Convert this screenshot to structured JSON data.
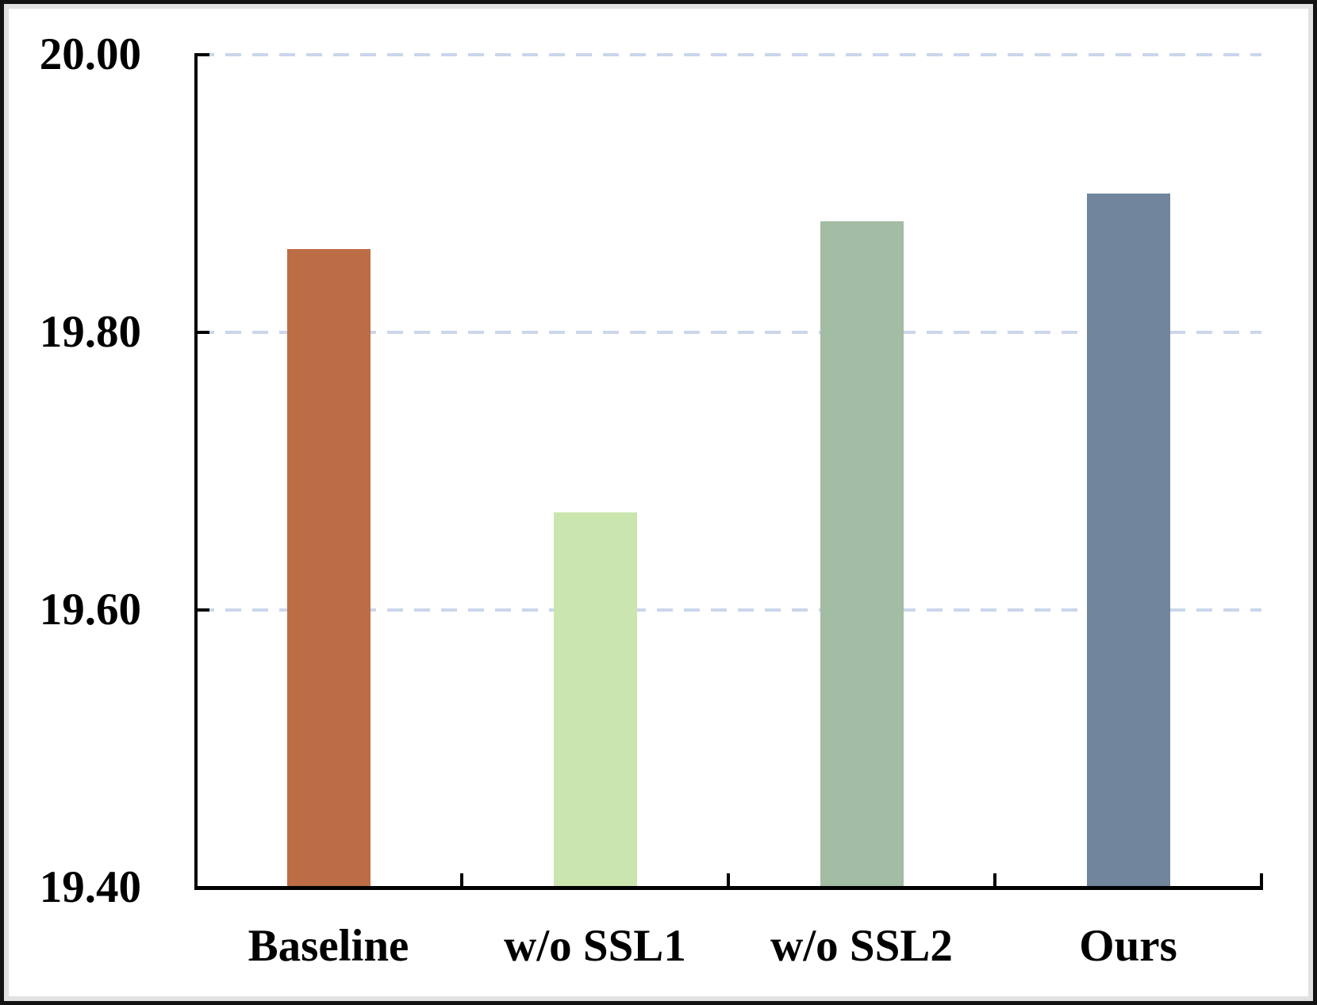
{
  "chart_data": {
    "type": "bar",
    "title": "",
    "xlabel": "",
    "ylabel": "",
    "categories": [
      "Baseline",
      "w/o SSL1",
      "w/o SSL2",
      "Ours"
    ],
    "values": [
      19.86,
      19.67,
      19.88,
      19.9
    ],
    "bar_colors": [
      "#BC6D45",
      "#CBE5AF",
      "#A3BDA4",
      "#71859D"
    ],
    "ylim": [
      19.4,
      20.0
    ],
    "ytick_labels": [
      "20.00",
      "19.80",
      "19.60",
      "19.40"
    ],
    "ytick_values": [
      20.0,
      19.8,
      19.6,
      19.4
    ],
    "grid": {
      "style": "dashed",
      "orientation": "horizontal",
      "color": "#CBD6EB"
    },
    "legend": "none",
    "axis_color": "#000000",
    "text_color": "#000000"
  },
  "frame": {
    "outer_border_color": "#131313",
    "inner_border_color": "#E2E2E2",
    "background": "#FFFFFF"
  }
}
